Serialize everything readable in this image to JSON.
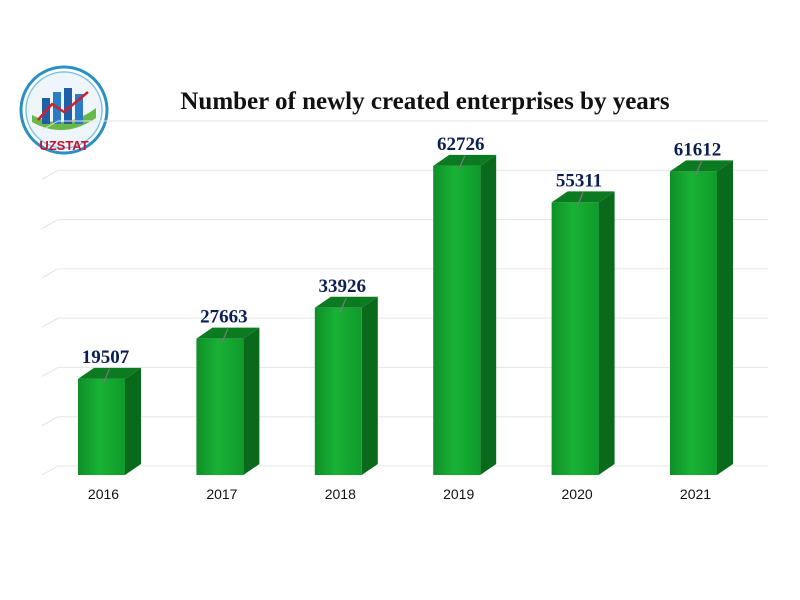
{
  "logo": {
    "text": "UZSTAT"
  },
  "chart_data": {
    "type": "bar",
    "title": "Number of newly created enterprises by years",
    "categories": [
      "2016",
      "2017",
      "2018",
      "2019",
      "2020",
      "2021"
    ],
    "values": [
      19507,
      27663,
      33926,
      62726,
      55311,
      61612
    ],
    "ylim": [
      0,
      70000
    ],
    "grid": true,
    "bar_color": "#13a52f",
    "bar_side_color": "#0a6a1c",
    "bar_top_color": "#0b7a20",
    "label_color": "#0b1f55"
  }
}
